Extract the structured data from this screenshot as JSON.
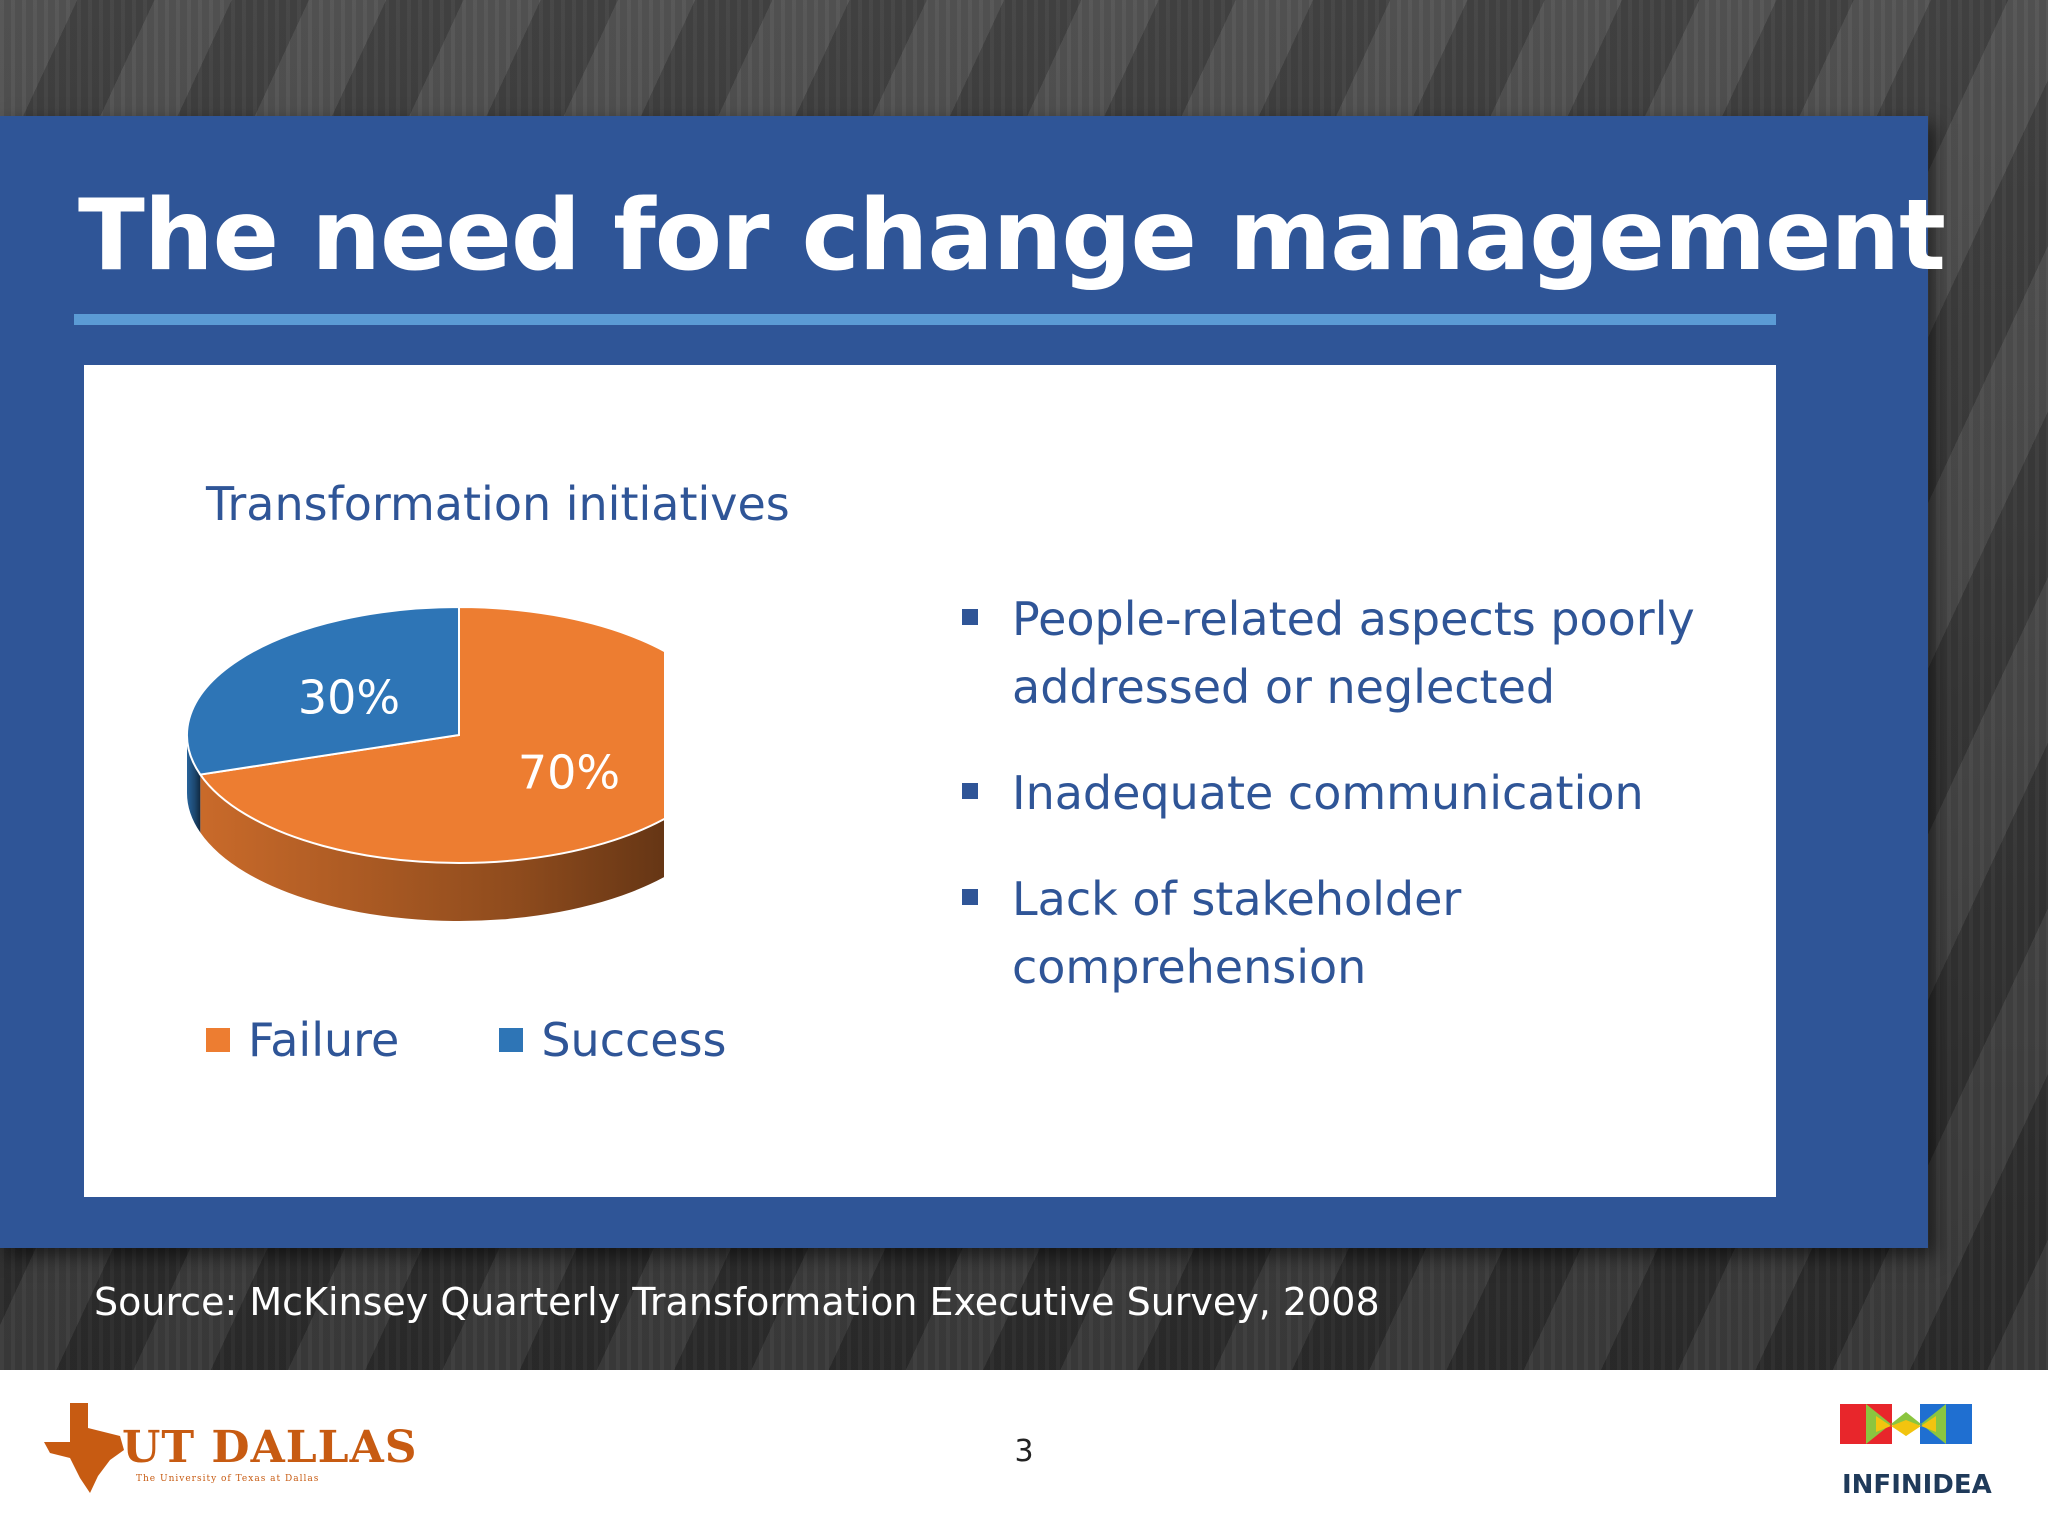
{
  "slide": {
    "title": "The need for change management",
    "source": "Source: McKinsey Quarterly Transformation Executive Survey, 2008",
    "page_number": "3"
  },
  "chart_data": {
    "type": "pie",
    "title": "Transformation initiatives",
    "categories": [
      "Failure",
      "Success"
    ],
    "values": [
      70,
      30
    ],
    "labels": [
      "70%",
      "30%"
    ],
    "colors": [
      "#ed7d31",
      "#2e75b6"
    ],
    "style": "3d",
    "legend": "bottom"
  },
  "bullets": [
    "People-related aspects poorly addressed or neglected",
    "Inadequate communication",
    "Lack of stakeholder comprehension"
  ],
  "logos": {
    "left": "UT DALLAS",
    "left_sub": "The University of Texas at Dallas",
    "right": "INFINIDEA"
  }
}
